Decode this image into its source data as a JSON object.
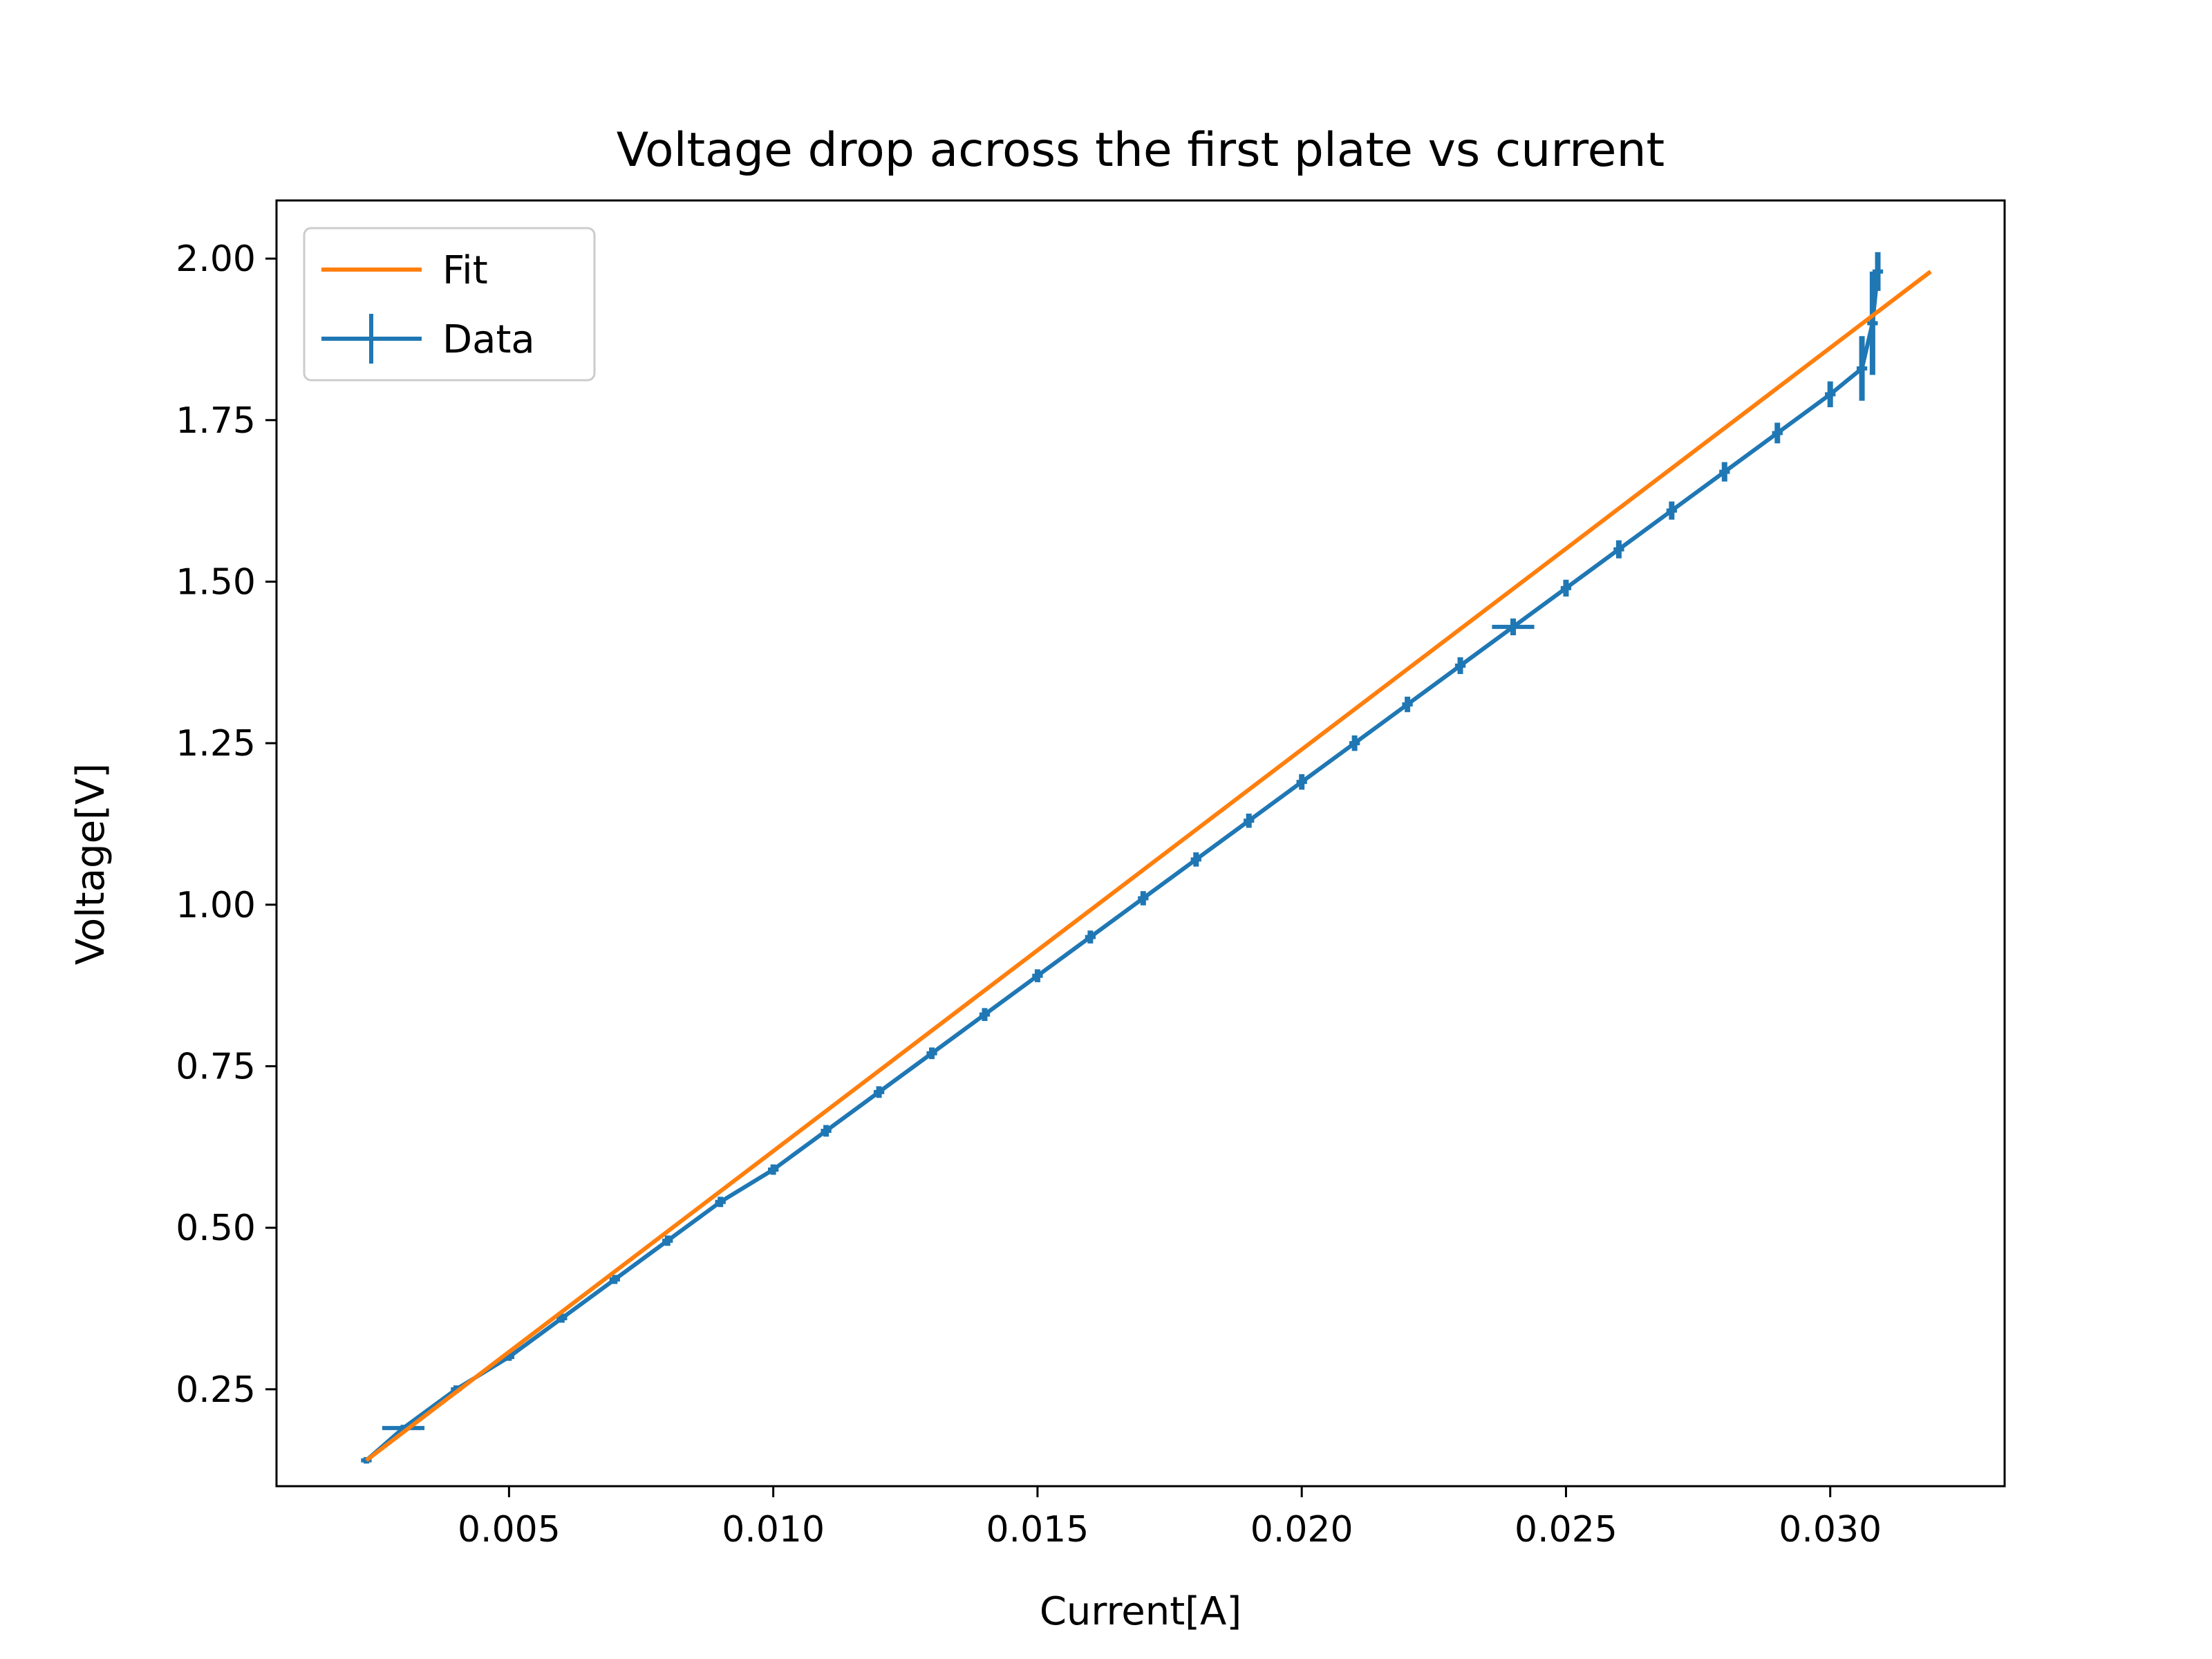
{
  "chart_data": {
    "type": "line",
    "title": "Voltage drop across the first plate vs current",
    "xlabel": "Current[A]",
    "ylabel": "Voltage[V]",
    "xlim": [
      0.0006,
      0.0333
    ],
    "ylim": [
      0.1,
      2.09
    ],
    "xticks": [
      0.005,
      0.01,
      0.015,
      0.02,
      0.025,
      0.03
    ],
    "xtick_labels": [
      "0.005",
      "0.010",
      "0.015",
      "0.020",
      "0.025",
      "0.030"
    ],
    "yticks": [
      0.25,
      0.5,
      0.75,
      1.0,
      1.25,
      1.5,
      1.75,
      2.0
    ],
    "ytick_labels": [
      "0.25",
      "0.50",
      "0.75",
      "1.00",
      "1.25",
      "1.50",
      "1.75",
      "2.00"
    ],
    "grid": false,
    "legend": {
      "position": "top-left",
      "entries": [
        "Fit",
        "Data"
      ]
    },
    "series": [
      {
        "name": "Fit",
        "color": "#ff7f0e",
        "kind": "line",
        "x": [
          0.0023,
          0.0319
        ],
        "y": [
          0.14,
          1.98
        ]
      },
      {
        "name": "Data",
        "color": "#1f77b4",
        "kind": "errorbar",
        "x": [
          0.0023,
          0.003,
          0.004,
          0.005,
          0.006,
          0.007,
          0.008,
          0.009,
          0.01,
          0.011,
          0.012,
          0.013,
          0.014,
          0.015,
          0.016,
          0.017,
          0.018,
          0.019,
          0.02,
          0.021,
          0.022,
          0.023,
          0.024,
          0.025,
          0.026,
          0.027,
          0.028,
          0.029,
          0.03,
          0.0306,
          0.0308,
          0.0309
        ],
        "y": [
          0.14,
          0.19,
          0.25,
          0.3,
          0.36,
          0.42,
          0.48,
          0.54,
          0.59,
          0.65,
          0.71,
          0.77,
          0.83,
          0.89,
          0.95,
          1.01,
          1.07,
          1.13,
          1.19,
          1.25,
          1.31,
          1.37,
          1.43,
          1.49,
          1.55,
          1.61,
          1.67,
          1.73,
          1.79,
          1.83,
          1.9,
          1.98
        ],
        "yerr": [
          0.005,
          0.005,
          0.006,
          0.006,
          0.007,
          0.007,
          0.008,
          0.008,
          0.008,
          0.009,
          0.009,
          0.009,
          0.01,
          0.01,
          0.01,
          0.011,
          0.011,
          0.011,
          0.012,
          0.012,
          0.012,
          0.013,
          0.013,
          0.013,
          0.014,
          0.014,
          0.015,
          0.016,
          0.02,
          0.05,
          0.08,
          0.03
        ],
        "xerr": [
          0.0001,
          0.0004,
          0.0001,
          0.0001,
          0.0001,
          0.0001,
          0.0001,
          0.0001,
          0.0001,
          0.0001,
          0.0001,
          0.0001,
          0.0001,
          0.0001,
          0.0001,
          0.0001,
          0.0001,
          0.0001,
          0.0001,
          0.0001,
          0.0001,
          0.0001,
          0.0004,
          0.0001,
          0.0001,
          0.0001,
          0.0001,
          0.0001,
          0.0001,
          0.0001,
          0.0001,
          0.0001
        ]
      }
    ]
  }
}
